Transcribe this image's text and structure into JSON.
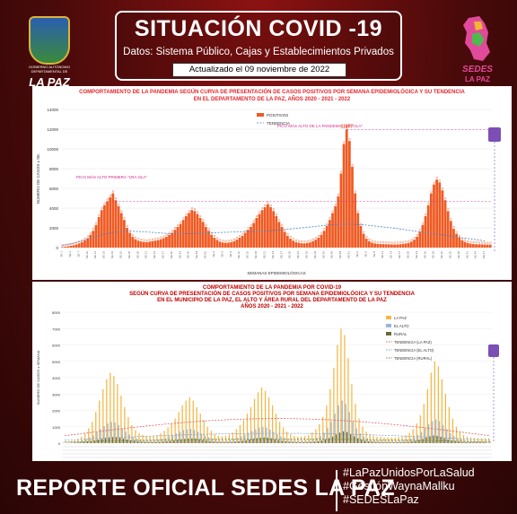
{
  "header": {
    "title": "SITUACIÓN COVID -19",
    "subtitle": "Datos: Sistema Público, Cajas y Establecimientos Privados",
    "updated": "Actualizado el  09  noviembre de 2022"
  },
  "logos": {
    "left_caption": "GOBIERNO AUTÓNOMO DEPARTAMENTAL DE",
    "left_name": "LA PAZ",
    "right_name": "SEDES",
    "right_sub": "LA PAZ"
  },
  "footer": {
    "main": "REPORTE OFICIAL SEDES LA PAZ",
    "tags": [
      "#LaPazUnidosPorLaSalud",
      "#GestiónWaynaMallku",
      "#SEDESLaPaz"
    ]
  },
  "colors": {
    "bar": "#f05a23",
    "trend": "#4a86c8",
    "peak_label": "#d42a8a",
    "lapaz": "#f5b642",
    "elalto": "#9ab7d9",
    "rural": "#6b6b3a"
  },
  "chart_data": [
    {
      "type": "bar",
      "title_lines": [
        "COMPORTAMIENTO DE LA PANDEMIA SEGÚN CURVA DE PRESENTACIÓN DE CASOS POSITIVOS POR SEMANA EPIDEMIOLÓGICA Y SU TENDENCIA",
        "EN EL DEPARTAMENTO DE LA PAZ, AÑOS 2020 - 2021 - 2022"
      ],
      "ylabel": "NÚMERO DE CASOS x SE.",
      "xlabel": "SEMANAS EPIDEMIOLÓGICAS",
      "ylim": [
        0,
        14000
      ],
      "yticks": [
        "0",
        "2000",
        "4000",
        "6000",
        "8000",
        "10000",
        "12000",
        "14000"
      ],
      "legend": [
        "POSITIVOS",
        "TENDENCIA"
      ],
      "annotations": [
        "PICO MÁS ALTO PRIMERA \"1RA OLA\"",
        "PICO MÁS ALTO DE LA PANDEMIA \"4TA OLA\""
      ],
      "peak_label": "11977",
      "series": [
        {
          "name": "POSITIVOS",
          "values": [
            60,
            90,
            130,
            180,
            240,
            320,
            420,
            560,
            720,
            950,
            1300,
            1700,
            2300,
            3100,
            3800,
            4300,
            4700,
            5100,
            5500,
            4800,
            4200,
            3500,
            2800,
            2000,
            1500,
            1100,
            850,
            700,
            620,
            580,
            560,
            600,
            650,
            700,
            760,
            850,
            950,
            1100,
            1300,
            1500,
            1800,
            2100,
            2400,
            2800,
            3200,
            3500,
            3800,
            3700,
            3400,
            3000,
            2600,
            2100,
            1700,
            1300,
            1000,
            780,
            600,
            520,
            480,
            500,
            550,
            650,
            800,
            1000,
            1200,
            1500,
            1800,
            2100,
            2500,
            3000,
            3400,
            3800,
            4100,
            4400,
            4100,
            3700,
            3200,
            2600,
            2100,
            1600,
            1200,
            900,
            700,
            560,
            480,
            440,
            430,
            460,
            520,
            650,
            800,
            1000,
            1300,
            1700,
            2200,
            2800,
            3500,
            4200,
            5200,
            7500,
            10500,
            11977,
            10800,
            8200,
            5500,
            3500,
            2200,
            1400,
            900,
            650,
            500,
            420,
            380,
            360,
            350,
            340,
            330,
            320,
            310,
            320,
            340,
            380,
            420,
            480,
            600,
            800,
            1100,
            1600,
            2300,
            3200,
            4300,
            5500,
            6400,
            6900,
            6600,
            5800,
            4800,
            3700,
            2700,
            1900,
            1400,
            1000,
            750,
            580,
            470,
            400,
            360,
            340,
            330,
            320,
            310,
            300,
            300
          ]
        },
        {
          "name": "TENDENCIA",
          "values": [
            200,
            260,
            320,
            380,
            450,
            520,
            600,
            680,
            760,
            850,
            940,
            1030,
            1120,
            1200,
            1280,
            1350,
            1420,
            1480,
            1530,
            1570,
            1600,
            1620,
            1640,
            1650,
            1650,
            1650,
            1640,
            1630,
            1620,
            1600,
            1580,
            1560,
            1540,
            1520,
            1500,
            1480,
            1460,
            1440,
            1420,
            1410,
            1400,
            1400,
            1400,
            1400,
            1410,
            1420,
            1430,
            1440,
            1450,
            1460,
            1470,
            1480,
            1490,
            1500,
            1510,
            1520,
            1530,
            1540,
            1550,
            1560,
            1570,
            1580,
            1590,
            1600,
            1610,
            1620,
            1630,
            1640,
            1650,
            1660,
            1670,
            1680,
            1690,
            1700,
            1720,
            1740,
            1760,
            1780,
            1800,
            1820,
            1850,
            1880,
            1910,
            1940,
            1970,
            2000,
            2030,
            2060,
            2090,
            2120,
            2150,
            2180,
            2210,
            2240,
            2270,
            2300,
            2320,
            2340,
            2360,
            2370,
            2380,
            2380,
            2380,
            2370,
            2360,
            2340,
            2320,
            2300,
            2270,
            2240,
            2210,
            2180,
            2150,
            2120,
            2090,
            2060,
            2030,
            2000,
            1960,
            1920,
            1880,
            1840,
            1800,
            1760,
            1720,
            1680,
            1640,
            1600,
            1560,
            1520,
            1480,
            1440,
            1400,
            1360,
            1320,
            1280,
            1240,
            1200,
            1160,
            1120,
            1080,
            1040,
            1000,
            960,
            920,
            880,
            840,
            800,
            760,
            720,
            680
          ]
        }
      ]
    },
    {
      "type": "bar",
      "title_lines": [
        "COMPORTAMIENTO DE LA PANDEMIA POR COVID-19",
        "SEGÚN CURVA DE PRESENTACIÓN DE CASOS POSITIVOS POR SEMANA EPIDEMIOLÓGICA Y SU TENDENCIA",
        "EN EL  MUNICIPIO DE LA PAZ, EL ALTO Y ÁREA RURAL DEL DEPARTAMENTO DE LA PAZ",
        "AÑOS 2020 - 2021 - 2022"
      ],
      "ylabel": "NUMERO DE CASOS x SEMANA",
      "ylim": [
        0,
        8000
      ],
      "yticks": [
        "0",
        "1000",
        "2000",
        "3000",
        "4000",
        "5000",
        "6000",
        "7000",
        "8000"
      ],
      "legend": [
        "LA PAZ",
        "EL ALTO",
        "RURAL",
        "TENDENCIA (LA PAZ)",
        "TENDENCIA (EL ALTO)",
        "TENDENCIA (RURAL)"
      ],
      "series": [
        {
          "name": "LA PAZ",
          "values": [
            30,
            60,
            100,
            160,
            250,
            400,
            600,
            900,
            1300,
            1900,
            2600,
            3300,
            3900,
            4300,
            4100,
            3600,
            2900,
            2200,
            1600,
            1100,
            800,
            600,
            500,
            450,
            430,
            450,
            500,
            600,
            750,
            950,
            1200,
            1500,
            1900,
            2300,
            2600,
            2800,
            2600,
            2200,
            1800,
            1400,
            1000,
            750,
            550,
            450,
            420,
            450,
            520,
            650,
            850,
            1100,
            1400,
            1800,
            2200,
            2700,
            3100,
            3400,
            3200,
            2800,
            2300,
            1800,
            1300,
            950,
            700,
            550,
            450,
            400,
            400,
            430,
            500,
            650,
            850,
            1150,
            1600,
            2300,
            3300,
            4600,
            6000,
            7000,
            6600,
            5200,
            3600,
            2400,
            1500,
            1000,
            700,
            550,
            450,
            400,
            380,
            360,
            350,
            340,
            340,
            360,
            400,
            480,
            620,
            850,
            1200,
            1700,
            2400,
            3300,
            4300,
            5000,
            4700,
            3900,
            3000,
            2200,
            1500,
            1000,
            700,
            500,
            400,
            350,
            320,
            300,
            300,
            300,
            300
          ]
        },
        {
          "name": "EL ALTO",
          "values": [
            10,
            20,
            40,
            70,
            110,
            170,
            250,
            350,
            480,
            650,
            850,
            1050,
            1200,
            1300,
            1250,
            1100,
            900,
            700,
            520,
            380,
            280,
            220,
            190,
            180,
            180,
            190,
            220,
            270,
            330,
            410,
            500,
            600,
            700,
            800,
            850,
            880,
            820,
            700,
            580,
            460,
            350,
            270,
            210,
            180,
            170,
            180,
            210,
            260,
            330,
            420,
            520,
            630,
            740,
            850,
            950,
            1000,
            950,
            830,
            690,
            550,
            420,
            320,
            250,
            200,
            170,
            160,
            160,
            170,
            200,
            260,
            340,
            460,
            640,
            920,
            1300,
            1800,
            2300,
            2600,
            2400,
            1900,
            1300,
            900,
            600,
            400,
            290,
            230,
            190,
            170,
            160,
            150,
            150,
            150,
            150,
            160,
            180,
            220,
            280,
            370,
            500,
            680,
            900,
            1150,
            1350,
            1450,
            1350,
            1100,
            850,
            620,
            440,
            310,
            230,
            180,
            150,
            130,
            120,
            115,
            110,
            110,
            110
          ]
        },
        {
          "name": "RURAL",
          "values": [
            5,
            10,
            18,
            30,
            45,
            65,
            90,
            120,
            160,
            210,
            260,
            310,
            350,
            380,
            370,
            330,
            280,
            220,
            170,
            130,
            100,
            80,
            70,
            65,
            65,
            70,
            80,
            95,
            115,
            140,
            170,
            200,
            230,
            260,
            280,
            290,
            270,
            240,
            200,
            160,
            125,
            95,
            75,
            65,
            60,
            65,
            75,
            90,
            115,
            145,
            180,
            220,
            260,
            300,
            330,
            350,
            330,
            290,
            240,
            190,
            145,
            110,
            85,
            70,
            60,
            55,
            55,
            60,
            70,
            90,
            120,
            160,
            220,
            300,
            400,
            520,
            640,
            720,
            680,
            560,
            420,
            300,
            210,
            150,
            110,
            85,
            70,
            60,
            55,
            52,
            50,
            50,
            52,
            56,
            65,
            80,
            105,
            140,
            190,
            260,
            340,
            420,
            470,
            450,
            380,
            300,
            220,
            160,
            115,
            85,
            65,
            55,
            48,
            45,
            43,
            42,
            42
          ]
        }
      ]
    }
  ]
}
